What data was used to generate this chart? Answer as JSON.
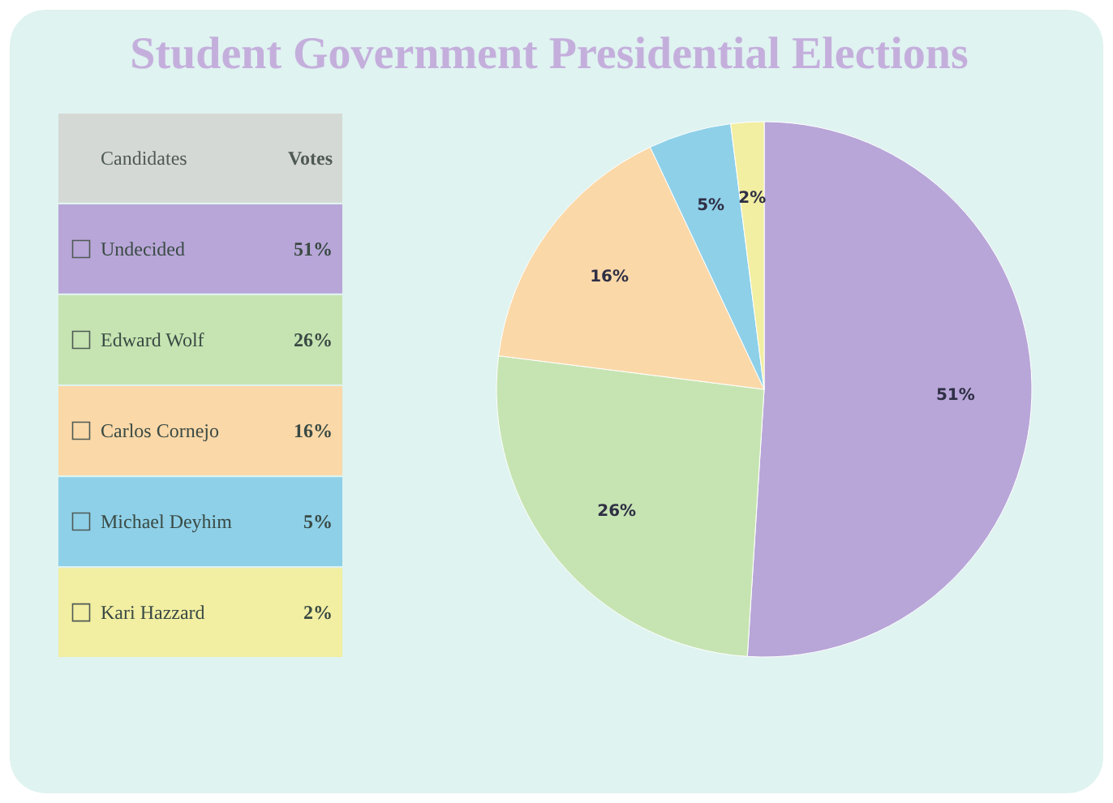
{
  "chart_data": {
    "type": "pie",
    "title": "Student Government Presidential Elections",
    "categories": [
      "Undecided",
      "Edward Wolf",
      "Carlos Cornejo",
      "Michael Deyhim",
      "Kari Hazzard"
    ],
    "values": [
      51,
      26,
      16,
      5,
      2
    ],
    "value_labels": [
      "51%",
      "26%",
      "16%",
      "5%",
      "2%"
    ],
    "colors": [
      "#b8a6d8",
      "#c6e4b2",
      "#fad8a8",
      "#8ed0e8",
      "#f2eea2"
    ],
    "legend": "left",
    "annotations": [
      "Candidates",
      "Votes"
    ]
  }
}
